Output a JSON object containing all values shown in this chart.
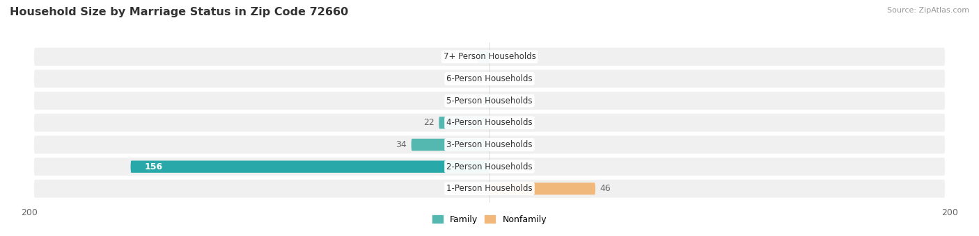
{
  "title": "Household Size by Marriage Status in Zip Code 72660",
  "source": "Source: ZipAtlas.com",
  "categories": [
    "7+ Person Households",
    "6-Person Households",
    "5-Person Households",
    "4-Person Households",
    "3-Person Households",
    "2-Person Households",
    "1-Person Households"
  ],
  "family_values": [
    5,
    0,
    1,
    22,
    34,
    156,
    0
  ],
  "nonfamily_values": [
    0,
    0,
    0,
    0,
    0,
    0,
    46
  ],
  "family_color": "#55B8B0",
  "nonfamily_color": "#F0B87A",
  "family_color_large": "#28A8A8",
  "xlim": 200,
  "bar_height": 0.55,
  "bg_color": "#ffffff",
  "row_bg": "#f0f0f0",
  "label_color": "#666666",
  "title_color": "#333333"
}
